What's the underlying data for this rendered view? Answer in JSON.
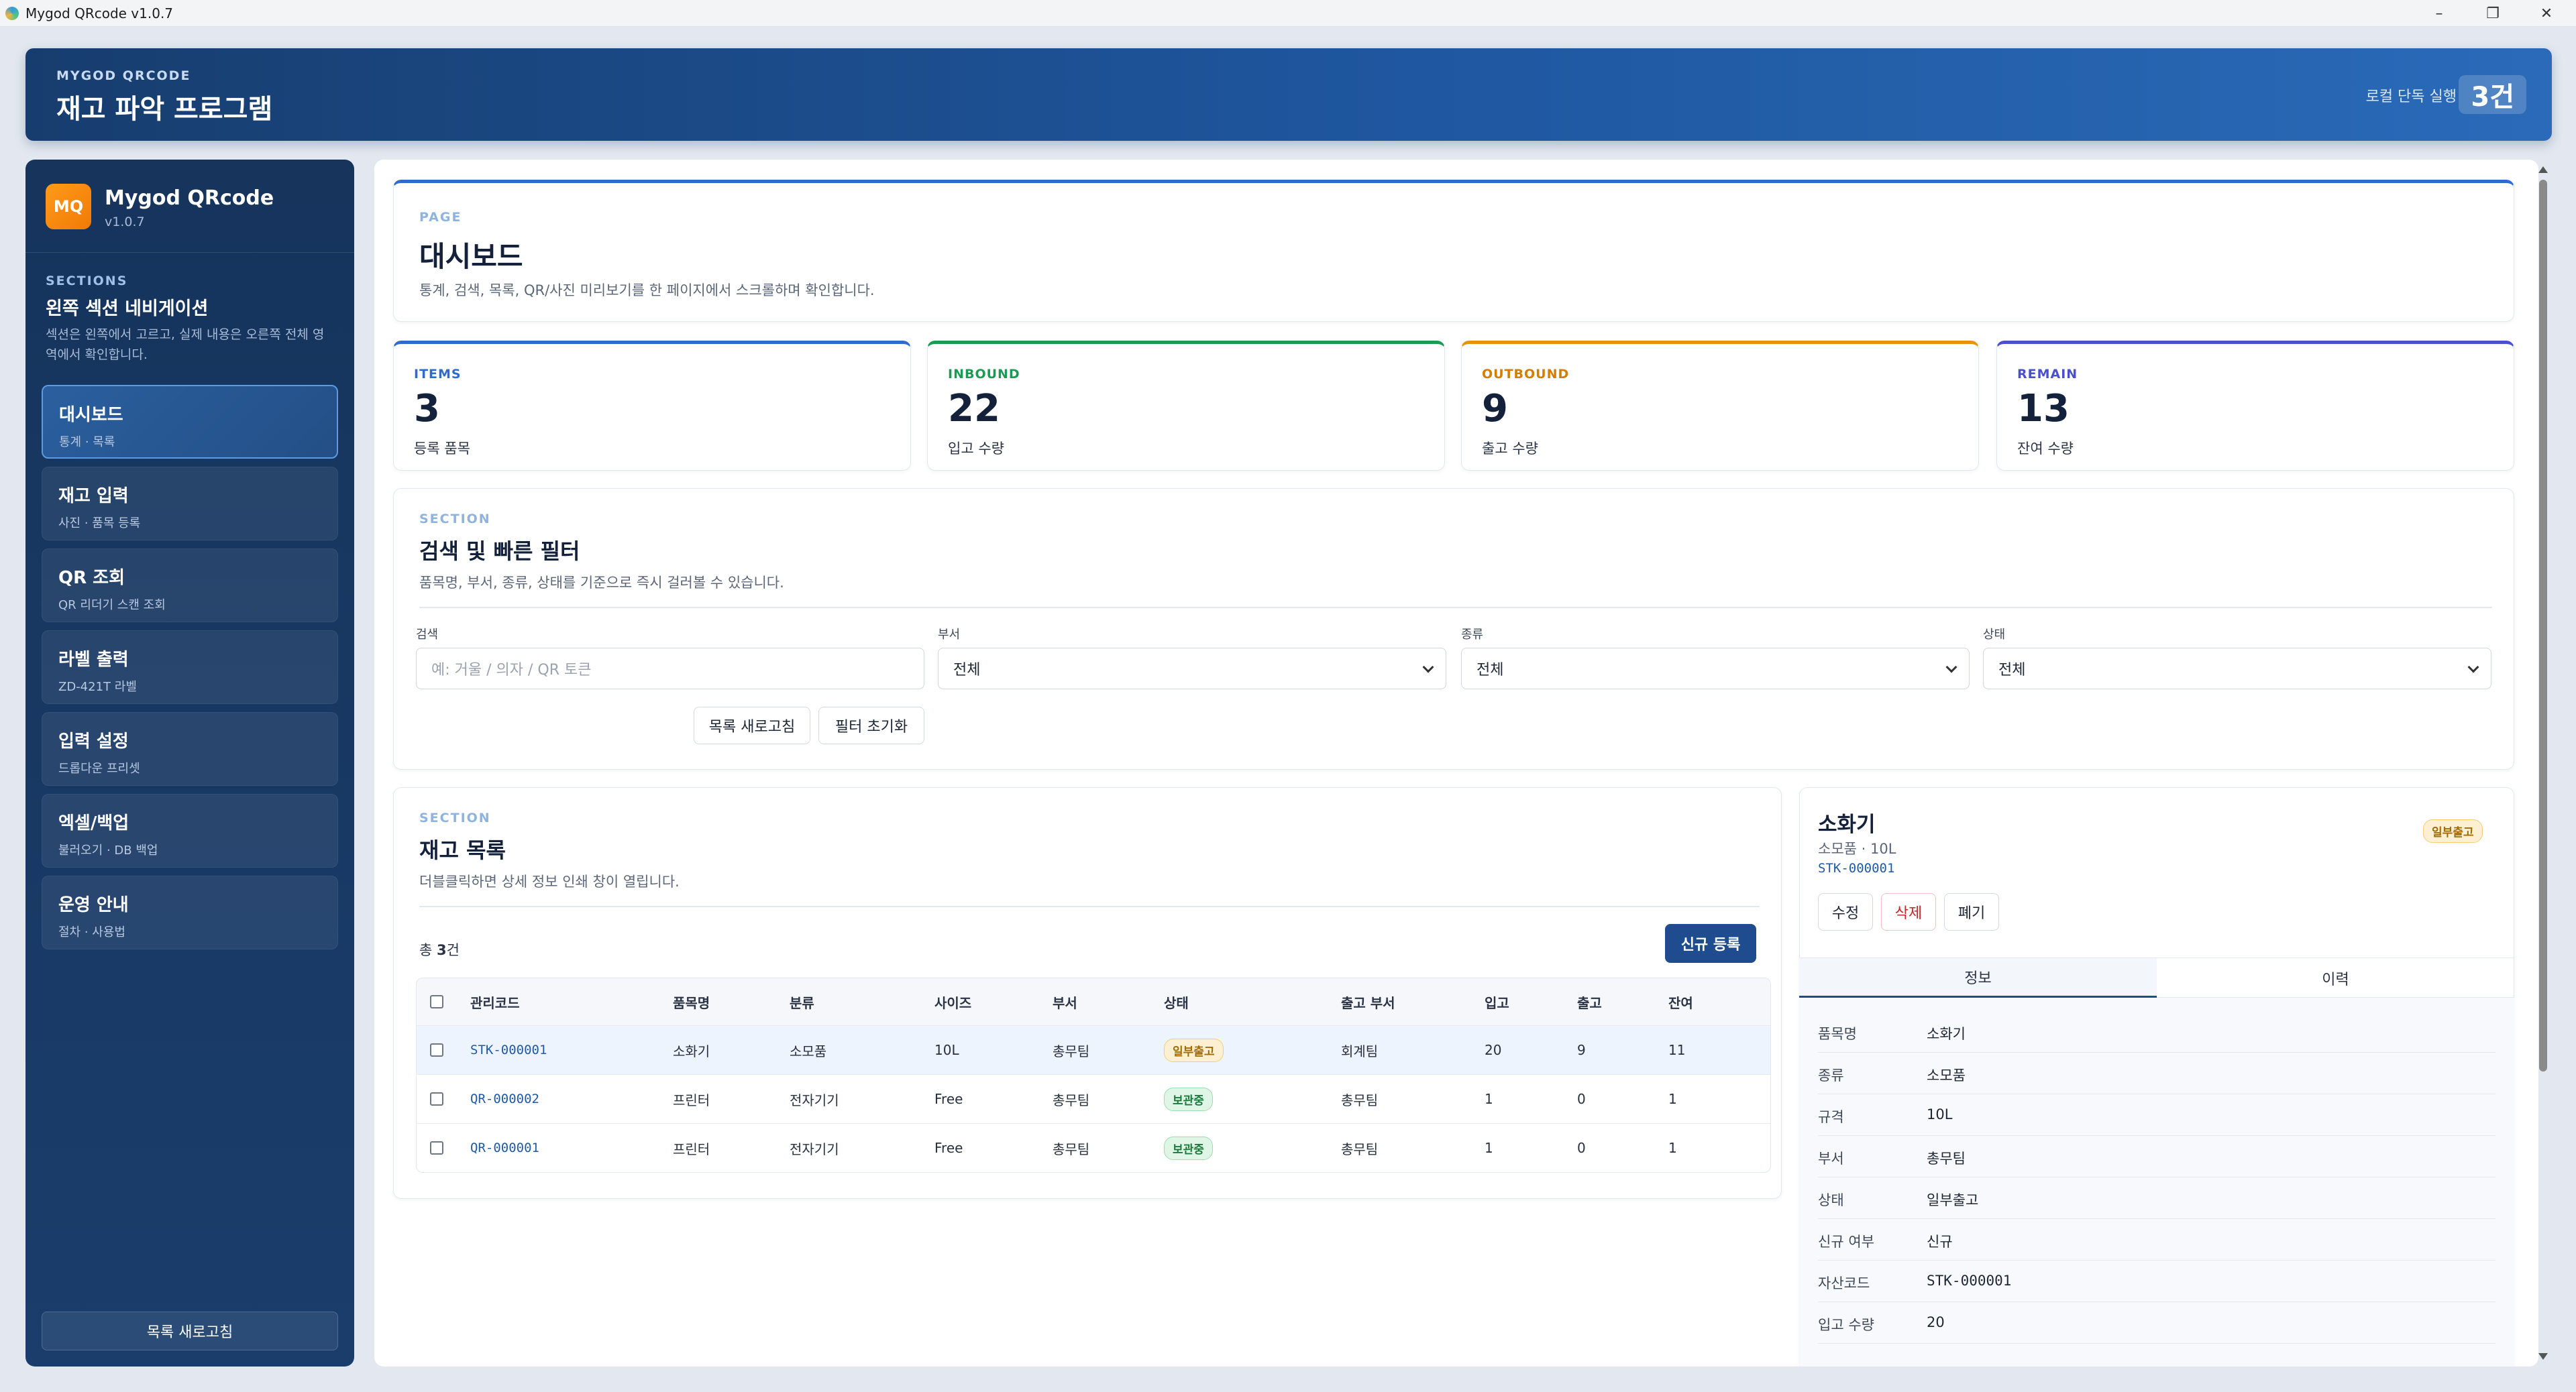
{
  "window": {
    "title": "Mygod QRcode v1.0.7"
  },
  "header": {
    "kicker": "MYGOD QRCODE",
    "title": "재고 파악 프로그램",
    "mode_label": "로컬 단독 실행",
    "count": "3건"
  },
  "sidebar": {
    "logo": "MQ",
    "brand": "Mygod QRcode",
    "version": "v1.0.7",
    "section_kicker": "SECTIONS",
    "section_title": "왼쪽 섹션 네비게이션",
    "section_desc": "섹션은 왼쪽에서 고르고, 실제 내용은 오른쪽 전체 영역에서 확인합니다.",
    "items": [
      {
        "label": "대시보드",
        "sub": "통계 · 목록"
      },
      {
        "label": "재고 입력",
        "sub": "사진 · 품목 등록"
      },
      {
        "label": "QR 조회",
        "sub": "QR 리더기 스캔 조회"
      },
      {
        "label": "라벨 출력",
        "sub": "ZD-421T 라벨"
      },
      {
        "label": "입력 설정",
        "sub": "드롭다운 프리셋"
      },
      {
        "label": "엑셀/백업",
        "sub": "불러오기 · DB 백업"
      },
      {
        "label": "운영 안내",
        "sub": "절차 · 사용법"
      }
    ],
    "refresh_label": "목록 새로고침"
  },
  "page": {
    "kicker": "PAGE",
    "title": "대시보드",
    "desc": "통계, 검색, 목록, QR/사진 미리보기를 한 페이지에서 스크롤하며 확인합니다."
  },
  "stats": [
    {
      "kicker": "ITEMS",
      "value": "3",
      "label": "등록 품목",
      "color": "#2d6bd1"
    },
    {
      "kicker": "INBOUND",
      "value": "22",
      "label": "입고 수량",
      "color": "#1a9a55"
    },
    {
      "kicker": "OUTBOUND",
      "value": "9",
      "label": "출고 수량",
      "color": "#e8920c"
    },
    {
      "kicker": "REMAIN",
      "value": "13",
      "label": "잔여 수량",
      "color": "#4a4fcf"
    }
  ],
  "filter": {
    "kicker": "SECTION",
    "title": "검색 및 빠른 필터",
    "desc": "품목명, 부서, 종류, 상태를 기준으로 즉시 걸러볼 수 있습니다.",
    "search_label": "검색",
    "search_placeholder": "예: 거울 / 의자 / QR 토큰",
    "dept_label": "부서",
    "dept_value": "전체",
    "type_label": "종류",
    "type_value": "전체",
    "status_label": "상태",
    "status_value": "전체",
    "refresh_btn": "목록 새로고침",
    "reset_btn": "필터 초기화"
  },
  "list": {
    "kicker": "SECTION",
    "title": "재고 목록",
    "desc": "더블클릭하면 상세 정보 인쇄 창이 열립니다.",
    "total_prefix": "총 ",
    "total_count": "3",
    "total_suffix": "건",
    "new_btn": "신규 등록",
    "columns": [
      "관리코드",
      "품목명",
      "분류",
      "사이즈",
      "부서",
      "상태",
      "출고 부서",
      "입고",
      "출고",
      "잔여"
    ],
    "rows": [
      {
        "code": "STK-000001",
        "name": "소화기",
        "category": "소모품",
        "size": "10L",
        "dept": "총무팀",
        "status": "일부출고",
        "out_dept": "회계팀",
        "in": "20",
        "out": "9",
        "remain": "11"
      },
      {
        "code": "QR-000002",
        "name": "프린터",
        "category": "전자기기",
        "size": "Free",
        "dept": "총무팀",
        "status": "보관중",
        "out_dept": "총무팀",
        "in": "1",
        "out": "0",
        "remain": "1"
      },
      {
        "code": "QR-000001",
        "name": "프린터",
        "category": "전자기기",
        "size": "Free",
        "dept": "총무팀",
        "status": "보관중",
        "out_dept": "총무팀",
        "in": "1",
        "out": "0",
        "remain": "1"
      }
    ]
  },
  "detail": {
    "name": "소화기",
    "sub": "소모품 · 10L",
    "code": "STK-000001",
    "badge": "일부출고",
    "edit_btn": "수정",
    "delete_btn": "삭제",
    "dispose_btn": "폐기",
    "tab_info": "정보",
    "tab_history": "이력",
    "fields": [
      {
        "k": "품목명",
        "v": "소화기"
      },
      {
        "k": "종류",
        "v": "소모품"
      },
      {
        "k": "규격",
        "v": "10L"
      },
      {
        "k": "부서",
        "v": "총무팀"
      },
      {
        "k": "상태",
        "v": "일부출고"
      },
      {
        "k": "신규 여부",
        "v": "신규"
      },
      {
        "k": "자산코드",
        "v": "STK-000001"
      },
      {
        "k": "입고 수량",
        "v": "20"
      }
    ]
  }
}
